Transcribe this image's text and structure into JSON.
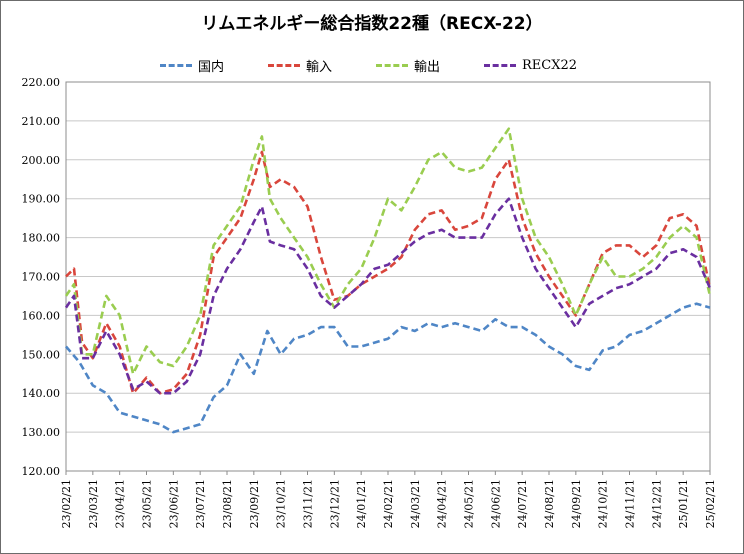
{
  "chart_data": {
    "type": "line",
    "title": "リムエネルギー総合指数22種（RECX-22）",
    "xlabel": "",
    "ylabel": "",
    "ylim": [
      120,
      220
    ],
    "yticks": [
      "120.00",
      "130.00",
      "140.00",
      "150.00",
      "160.00",
      "170.00",
      "180.00",
      "190.00",
      "200.00",
      "210.00",
      "220.00"
    ],
    "x_ticks": [
      "23/02/21",
      "23/03/21",
      "23/04/21",
      "23/05/21",
      "23/06/21",
      "23/07/21",
      "23/08/21",
      "23/09/21",
      "23/10/21",
      "23/11/21",
      "23/12/21",
      "24/01/21",
      "24/02/21",
      "24/03/21",
      "24/04/21",
      "24/05/21",
      "24/06/21",
      "24/07/21",
      "24/08/21",
      "24/09/21",
      "24/10/21",
      "24/11/21",
      "24/12/21",
      "25/01/21",
      "25/02/21"
    ],
    "grid": true,
    "legend_position": "top",
    "series": [
      {
        "name": "国内",
        "color": "#4f86c6",
        "values": [
          [
            0,
            152
          ],
          [
            0.5,
            148
          ],
          [
            1,
            142
          ],
          [
            1.5,
            140
          ],
          [
            2,
            135
          ],
          [
            2.5,
            134
          ],
          [
            3,
            133
          ],
          [
            3.5,
            132
          ],
          [
            4,
            130
          ],
          [
            4.5,
            131
          ],
          [
            5,
            132
          ],
          [
            5.5,
            139
          ],
          [
            6,
            142
          ],
          [
            6.5,
            150
          ],
          [
            7,
            145
          ],
          [
            7.5,
            156
          ],
          [
            8,
            150
          ],
          [
            8.5,
            154
          ],
          [
            9,
            155
          ],
          [
            9.5,
            157
          ],
          [
            10,
            157
          ],
          [
            10.5,
            152
          ],
          [
            11,
            152
          ],
          [
            11.5,
            153
          ],
          [
            12,
            154
          ],
          [
            12.5,
            157
          ],
          [
            13,
            156
          ],
          [
            13.5,
            158
          ],
          [
            14,
            157
          ],
          [
            14.5,
            158
          ],
          [
            15,
            157
          ],
          [
            15.5,
            156
          ],
          [
            16,
            159
          ],
          [
            16.5,
            157
          ],
          [
            17,
            157
          ],
          [
            17.5,
            155
          ],
          [
            18,
            152
          ],
          [
            18.5,
            150
          ],
          [
            19,
            147
          ],
          [
            19.5,
            146
          ],
          [
            20,
            151
          ],
          [
            20.5,
            152
          ],
          [
            21,
            155
          ],
          [
            21.5,
            156
          ],
          [
            22,
            158
          ],
          [
            22.5,
            160
          ],
          [
            23,
            162
          ],
          [
            23.5,
            163
          ],
          [
            24,
            162
          ]
        ]
      },
      {
        "name": "輸入",
        "color": "#d9463c",
        "values": [
          [
            0,
            170
          ],
          [
            0.3,
            172
          ],
          [
            0.6,
            153
          ],
          [
            1,
            149
          ],
          [
            1.5,
            158
          ],
          [
            2,
            152
          ],
          [
            2.5,
            140
          ],
          [
            3,
            144
          ],
          [
            3.5,
            140
          ],
          [
            4,
            141
          ],
          [
            4.5,
            145
          ],
          [
            5,
            155
          ],
          [
            5.5,
            175
          ],
          [
            6,
            180
          ],
          [
            6.5,
            185
          ],
          [
            7,
            195
          ],
          [
            7.3,
            202
          ],
          [
            7.6,
            193
          ],
          [
            8,
            195
          ],
          [
            8.5,
            193
          ],
          [
            9,
            188
          ],
          [
            9.5,
            175
          ],
          [
            10,
            164
          ],
          [
            10.5,
            165
          ],
          [
            11,
            168
          ],
          [
            11.5,
            170
          ],
          [
            12,
            172
          ],
          [
            12.5,
            175
          ],
          [
            13,
            182
          ],
          [
            13.5,
            186
          ],
          [
            14,
            187
          ],
          [
            14.5,
            182
          ],
          [
            15,
            183
          ],
          [
            15.5,
            185
          ],
          [
            16,
            195
          ],
          [
            16.5,
            200
          ],
          [
            17,
            185
          ],
          [
            17.5,
            176
          ],
          [
            18,
            170
          ],
          [
            18.5,
            165
          ],
          [
            19,
            160
          ],
          [
            19.5,
            168
          ],
          [
            20,
            176
          ],
          [
            20.5,
            178
          ],
          [
            21,
            178
          ],
          [
            21.5,
            175
          ],
          [
            22,
            178
          ],
          [
            22.5,
            185
          ],
          [
            23,
            186
          ],
          [
            23.5,
            183
          ],
          [
            24,
            167
          ]
        ]
      },
      {
        "name": "輸出",
        "color": "#9acd50",
        "values": [
          [
            0,
            165
          ],
          [
            0.3,
            168
          ],
          [
            0.6,
            150
          ],
          [
            1,
            150
          ],
          [
            1.5,
            165
          ],
          [
            2,
            160
          ],
          [
            2.5,
            145
          ],
          [
            3,
            152
          ],
          [
            3.5,
            148
          ],
          [
            4,
            147
          ],
          [
            4.5,
            152
          ],
          [
            5,
            160
          ],
          [
            5.5,
            178
          ],
          [
            6,
            183
          ],
          [
            6.5,
            188
          ],
          [
            7,
            200
          ],
          [
            7.3,
            206
          ],
          [
            7.6,
            190
          ],
          [
            8,
            185
          ],
          [
            8.5,
            180
          ],
          [
            9,
            175
          ],
          [
            9.5,
            168
          ],
          [
            10,
            162
          ],
          [
            10.5,
            168
          ],
          [
            11,
            172
          ],
          [
            11.5,
            180
          ],
          [
            12,
            190
          ],
          [
            12.5,
            187
          ],
          [
            13,
            193
          ],
          [
            13.5,
            200
          ],
          [
            14,
            202
          ],
          [
            14.5,
            198
          ],
          [
            15,
            197
          ],
          [
            15.5,
            198
          ],
          [
            16,
            203
          ],
          [
            16.5,
            208
          ],
          [
            17,
            190
          ],
          [
            17.5,
            180
          ],
          [
            18,
            175
          ],
          [
            18.5,
            168
          ],
          [
            19,
            160
          ],
          [
            19.5,
            168
          ],
          [
            20,
            175
          ],
          [
            20.5,
            170
          ],
          [
            21,
            170
          ],
          [
            21.5,
            172
          ],
          [
            22,
            175
          ],
          [
            22.5,
            180
          ],
          [
            23,
            183
          ],
          [
            23.5,
            180
          ],
          [
            24,
            165
          ]
        ]
      },
      {
        "name": "RECX22",
        "color": "#6a2fa0",
        "values": [
          [
            0,
            162
          ],
          [
            0.3,
            165
          ],
          [
            0.6,
            149
          ],
          [
            1,
            149
          ],
          [
            1.5,
            156
          ],
          [
            2,
            150
          ],
          [
            2.5,
            141
          ],
          [
            3,
            143
          ],
          [
            3.5,
            140
          ],
          [
            4,
            140
          ],
          [
            4.5,
            143
          ],
          [
            5,
            150
          ],
          [
            5.5,
            165
          ],
          [
            6,
            172
          ],
          [
            6.5,
            177
          ],
          [
            7,
            184
          ],
          [
            7.3,
            188
          ],
          [
            7.6,
            179
          ],
          [
            8,
            178
          ],
          [
            8.5,
            177
          ],
          [
            9,
            172
          ],
          [
            9.5,
            165
          ],
          [
            10,
            162
          ],
          [
            10.5,
            165
          ],
          [
            11,
            168
          ],
          [
            11.5,
            172
          ],
          [
            12,
            173
          ],
          [
            12.5,
            176
          ],
          [
            13,
            179
          ],
          [
            13.5,
            181
          ],
          [
            14,
            182
          ],
          [
            14.5,
            180
          ],
          [
            15,
            180
          ],
          [
            15.5,
            180
          ],
          [
            16,
            186
          ],
          [
            16.5,
            190
          ],
          [
            17,
            180
          ],
          [
            17.5,
            172
          ],
          [
            18,
            167
          ],
          [
            18.5,
            162
          ],
          [
            19,
            157
          ],
          [
            19.5,
            163
          ],
          [
            20,
            165
          ],
          [
            20.5,
            167
          ],
          [
            21,
            168
          ],
          [
            21.5,
            170
          ],
          [
            22,
            172
          ],
          [
            22.5,
            176
          ],
          [
            23,
            177
          ],
          [
            23.5,
            175
          ],
          [
            24,
            167
          ]
        ]
      }
    ]
  }
}
